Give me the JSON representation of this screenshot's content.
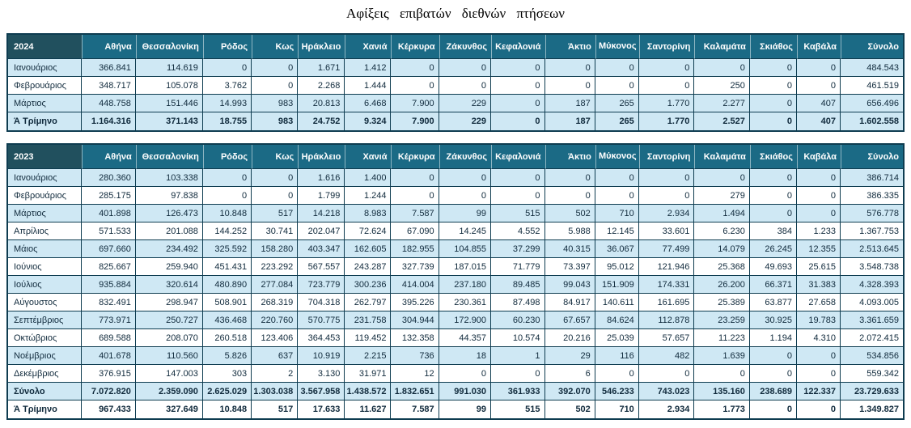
{
  "title": "Αφίξεις  επιβατών  διεθνών  πτήσεων",
  "columns": [
    "Αθήνα",
    "Θεσσαλονίκη",
    "Ρόδος",
    "Κως",
    "Ηράκλειο",
    "Χανιά",
    "Κέρκυρα",
    "Ζάκυνθος",
    "Κεφαλονιά",
    "Άκτιο",
    "Μύκονος",
    "Σαντορίνη",
    "Καλαμάτα",
    "Σκιάθος",
    "Καβάλα",
    "Σύνολο"
  ],
  "colors": {
    "header_bg": "#1b6a85",
    "header_year_bg": "#21505e",
    "header_text": "#ffffff",
    "row_shade": "#cfe8f4",
    "row_white": "#ffffff",
    "border": "#0e3c50",
    "text": "#102a3c"
  },
  "tables": [
    {
      "year": "2024",
      "rows": [
        {
          "label": "Ιανουάριος",
          "shaded": true,
          "emphasis": false,
          "values": [
            "366.841",
            "114.619",
            "0",
            "0",
            "1.671",
            "1.412",
            "0",
            "0",
            "0",
            "0",
            "0",
            "0",
            "0",
            "0",
            "0",
            "484.543"
          ]
        },
        {
          "label": "Φεβρουάριος",
          "shaded": false,
          "emphasis": false,
          "values": [
            "348.717",
            "105.078",
            "3.762",
            "0",
            "2.268",
            "1.444",
            "0",
            "0",
            "0",
            "0",
            "0",
            "0",
            "250",
            "0",
            "0",
            "461.519"
          ]
        },
        {
          "label": "Μάρτιος",
          "shaded": true,
          "emphasis": false,
          "values": [
            "448.758",
            "151.446",
            "14.993",
            "983",
            "20.813",
            "6.468",
            "7.900",
            "229",
            "0",
            "187",
            "265",
            "1.770",
            "2.277",
            "0",
            "407",
            "656.496"
          ]
        },
        {
          "label": "Ά Τρίμηνο",
          "shaded": true,
          "emphasis": true,
          "values": [
            "1.164.316",
            "371.143",
            "18.755",
            "983",
            "24.752",
            "9.324",
            "7.900",
            "229",
            "0",
            "187",
            "265",
            "1.770",
            "2.527",
            "0",
            "407",
            "1.602.558"
          ]
        }
      ]
    },
    {
      "year": "2023",
      "rows": [
        {
          "label": "Ιανουάριος",
          "shaded": true,
          "emphasis": false,
          "values": [
            "280.360",
            "103.338",
            "0",
            "0",
            "1.616",
            "1.400",
            "0",
            "0",
            "0",
            "0",
            "0",
            "0",
            "0",
            "0",
            "0",
            "386.714"
          ]
        },
        {
          "label": "Φεβρουάριος",
          "shaded": false,
          "emphasis": false,
          "values": [
            "285.175",
            "97.838",
            "0",
            "0",
            "1.799",
            "1.244",
            "0",
            "0",
            "0",
            "0",
            "0",
            "0",
            "279",
            "0",
            "0",
            "386.335"
          ]
        },
        {
          "label": "Μάρτιος",
          "shaded": true,
          "emphasis": false,
          "values": [
            "401.898",
            "126.473",
            "10.848",
            "517",
            "14.218",
            "8.983",
            "7.587",
            "99",
            "515",
            "502",
            "710",
            "2.934",
            "1.494",
            "0",
            "0",
            "576.778"
          ]
        },
        {
          "label": "Απρίλιος",
          "shaded": false,
          "emphasis": false,
          "values": [
            "571.533",
            "201.088",
            "144.252",
            "30.741",
            "202.047",
            "72.624",
            "67.090",
            "14.245",
            "4.552",
            "5.988",
            "12.145",
            "33.601",
            "6.230",
            "384",
            "1.233",
            "1.367.753"
          ]
        },
        {
          "label": "Μάιος",
          "shaded": true,
          "emphasis": false,
          "values": [
            "697.660",
            "234.492",
            "325.592",
            "158.280",
            "403.347",
            "162.605",
            "182.955",
            "104.855",
            "37.299",
            "40.315",
            "36.067",
            "77.499",
            "14.079",
            "26.245",
            "12.355",
            "2.513.645"
          ]
        },
        {
          "label": "Ιούνιος",
          "shaded": false,
          "emphasis": false,
          "values": [
            "825.667",
            "259.940",
            "451.431",
            "223.292",
            "567.557",
            "243.287",
            "327.739",
            "187.015",
            "71.779",
            "73.397",
            "95.012",
            "121.946",
            "25.368",
            "49.693",
            "25.615",
            "3.548.738"
          ]
        },
        {
          "label": "Ιούλιος",
          "shaded": true,
          "emphasis": false,
          "values": [
            "935.884",
            "320.614",
            "480.890",
            "277.084",
            "723.779",
            "300.236",
            "414.004",
            "237.180",
            "89.485",
            "99.043",
            "151.909",
            "174.331",
            "26.200",
            "66.371",
            "31.383",
            "4.328.393"
          ]
        },
        {
          "label": "Αύγουστος",
          "shaded": false,
          "emphasis": false,
          "values": [
            "832.491",
            "298.947",
            "508.901",
            "268.319",
            "704.318",
            "262.797",
            "395.226",
            "230.361",
            "87.498",
            "84.917",
            "140.611",
            "161.695",
            "25.389",
            "63.877",
            "27.658",
            "4.093.005"
          ]
        },
        {
          "label": "Σεπτέμβριος",
          "shaded": true,
          "emphasis": false,
          "values": [
            "773.971",
            "250.727",
            "436.468",
            "220.760",
            "570.775",
            "231.758",
            "304.944",
            "172.900",
            "60.230",
            "67.657",
            "84.624",
            "112.878",
            "23.259",
            "30.925",
            "19.783",
            "3.361.659"
          ]
        },
        {
          "label": "Οκτώβριος",
          "shaded": false,
          "emphasis": false,
          "values": [
            "689.588",
            "208.070",
            "260.518",
            "123.406",
            "364.453",
            "119.452",
            "132.358",
            "44.357",
            "10.574",
            "20.216",
            "25.039",
            "57.657",
            "11.223",
            "1.194",
            "4.310",
            "2.072.415"
          ]
        },
        {
          "label": "Νοέμβριος",
          "shaded": true,
          "emphasis": false,
          "values": [
            "401.678",
            "110.560",
            "5.826",
            "637",
            "10.919",
            "2.215",
            "736",
            "18",
            "1",
            "29",
            "116",
            "482",
            "1.639",
            "0",
            "0",
            "534.856"
          ]
        },
        {
          "label": "Δεκέμβριος",
          "shaded": false,
          "emphasis": false,
          "values": [
            "376.915",
            "147.003",
            "303",
            "2",
            "3.130",
            "31.971",
            "12",
            "0",
            "0",
            "6",
            "0",
            "0",
            "0",
            "0",
            "0",
            "559.342"
          ]
        },
        {
          "label": "Σύνολο",
          "shaded": true,
          "emphasis": true,
          "values": [
            "7.072.820",
            "2.359.090",
            "2.625.029",
            "1.303.038",
            "3.567.958",
            "1.438.572",
            "1.832.651",
            "991.030",
            "361.933",
            "392.070",
            "546.233",
            "743.023",
            "135.160",
            "238.689",
            "122.337",
            "23.729.633"
          ]
        },
        {
          "label": "Ά Τρίμηνο",
          "shaded": false,
          "emphasis": true,
          "values": [
            "967.433",
            "327.649",
            "10.848",
            "517",
            "17.633",
            "11.627",
            "7.587",
            "99",
            "515",
            "502",
            "710",
            "2.934",
            "1.773",
            "0",
            "0",
            "1.349.827"
          ]
        }
      ]
    }
  ]
}
